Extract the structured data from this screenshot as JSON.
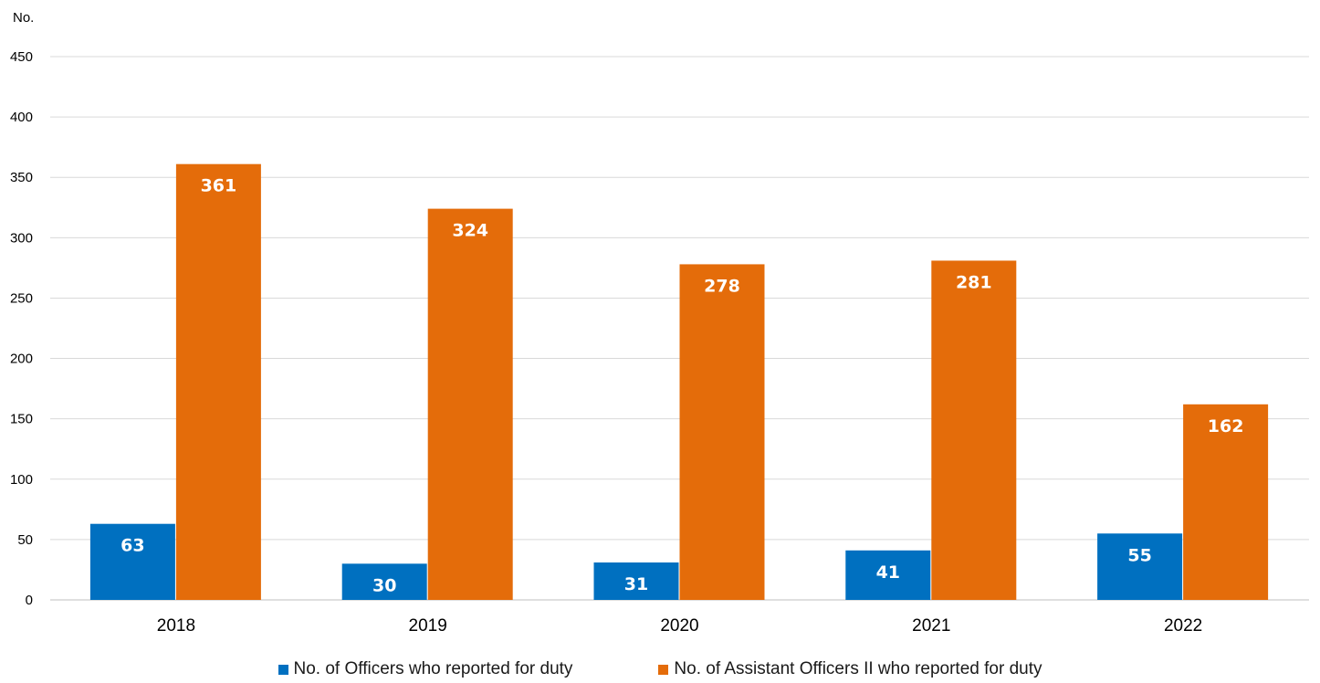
{
  "chart_data": {
    "type": "bar",
    "title": "",
    "ylabel": "No.",
    "xlabel": "",
    "ylim": [
      0,
      450
    ],
    "ytick_step": 50,
    "grid": true,
    "categories": [
      "2018",
      "2019",
      "2020",
      "2021",
      "2022"
    ],
    "series": [
      {
        "name": "No. of Officers who reported for duty",
        "color": "#0070C0",
        "values": [
          63,
          30,
          31,
          41,
          55
        ]
      },
      {
        "name": "No. of Assistant Officers II who reported for duty",
        "color": "#E46C0A",
        "values": [
          361,
          324,
          278,
          281,
          162
        ]
      }
    ],
    "legend_position": "bottom"
  }
}
